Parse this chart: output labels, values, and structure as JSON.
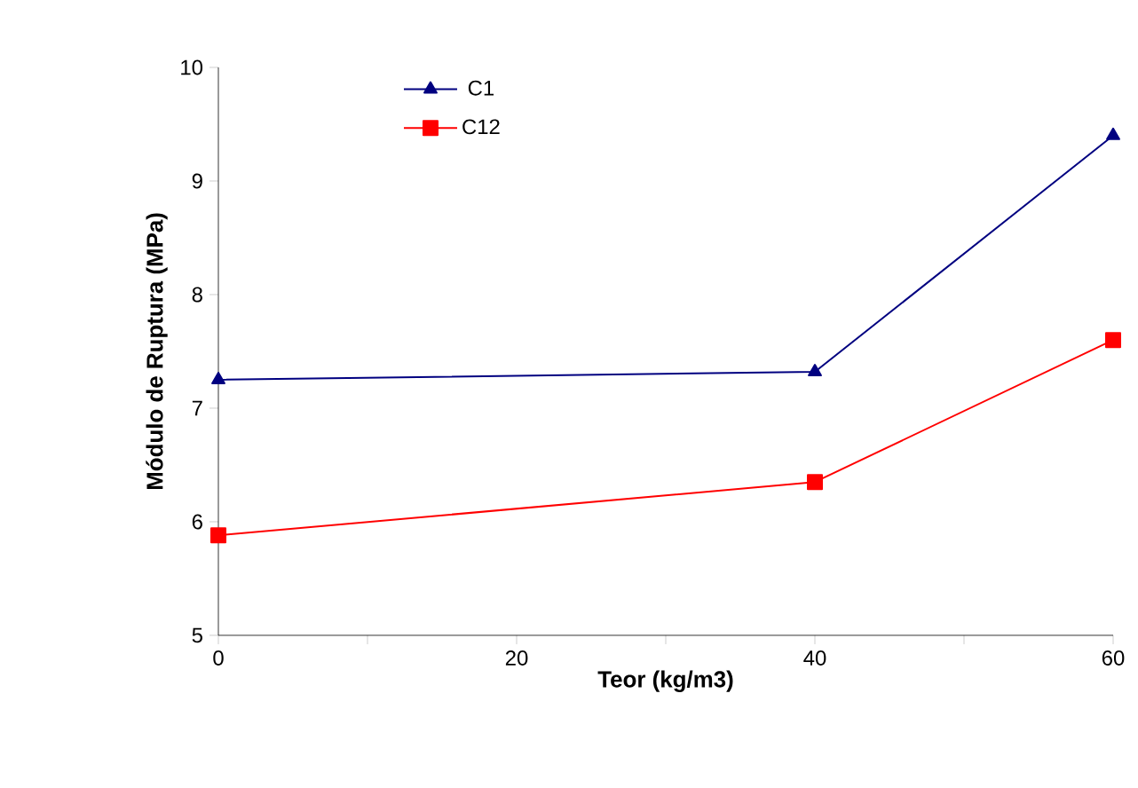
{
  "chart_data": {
    "type": "line",
    "xlabel": "Teor (kg/m3)",
    "ylabel": "Módulo de Ruptura (MPa)",
    "x": [
      0,
      40,
      60
    ],
    "series": [
      {
        "name": "C1",
        "color": "#000080",
        "marker": "triangle",
        "values": [
          7.25,
          7.32,
          9.4
        ]
      },
      {
        "name": "C12",
        "color": "#ff0000",
        "marker": "square",
        "values": [
          5.88,
          6.35,
          7.6
        ]
      }
    ],
    "xlim": [
      0,
      60
    ],
    "ylim": [
      5,
      10
    ],
    "xticks": [
      0,
      {
        "value": 10,
        "label": null
      },
      20,
      {
        "value": 30,
        "label": null
      },
      40,
      {
        "value": 50,
        "label": null
      },
      60
    ],
    "yticks": [
      5,
      6,
      7,
      8,
      9,
      10
    ],
    "grid": false,
    "legend": "top left",
    "line_style": "solid"
  }
}
